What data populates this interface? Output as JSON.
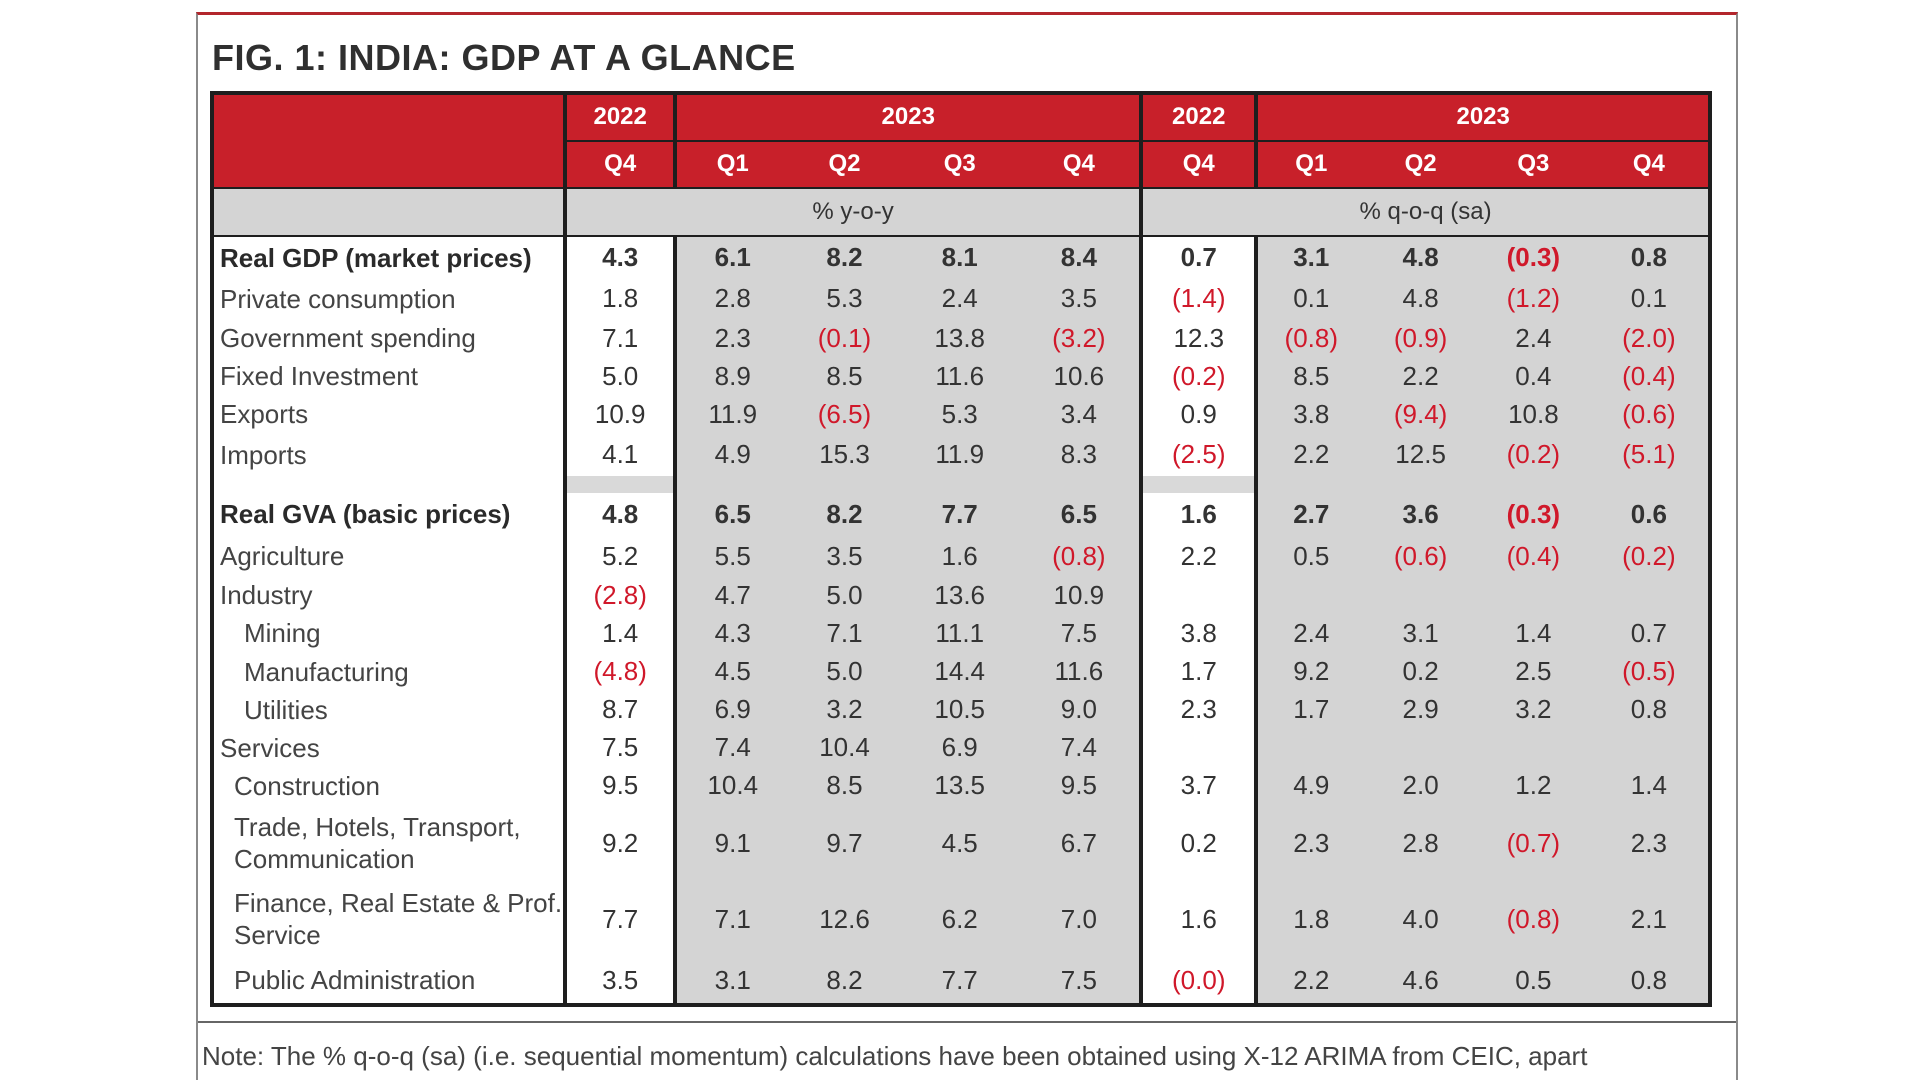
{
  "title": "FIG. 1: INDIA: GDP AT A GLANCE",
  "header": {
    "years": [
      "2022",
      "2023",
      "2022",
      "2023"
    ],
    "quarters": [
      "Q4",
      "Q1",
      "Q2",
      "Q3",
      "Q4",
      "Q4",
      "Q1",
      "Q2",
      "Q3",
      "Q4"
    ],
    "yoy_label": "% y-o-y",
    "qoq_label": "% q-o-q (sa)"
  },
  "rows_top": [
    {
      "label": "Real GDP (market prices)",
      "values": [
        "4.3",
        "6.1",
        "8.2",
        "8.1",
        "8.4",
        "0.7",
        "3.1",
        "4.8",
        "(0.3)",
        "0.8"
      ]
    },
    {
      "label": "Private consumption",
      "values": [
        "1.8",
        "2.8",
        "5.3",
        "2.4",
        "3.5",
        "(1.4)",
        "0.1",
        "4.8",
        "(1.2)",
        "0.1"
      ]
    },
    {
      "label": "Government spending",
      "values": [
        "7.1",
        "2.3",
        "(0.1)",
        "13.8",
        "(3.2)",
        "12.3",
        "(0.8)",
        "(0.9)",
        "2.4",
        "(2.0)"
      ]
    },
    {
      "label": "Fixed Investment",
      "values": [
        "5.0",
        "8.9",
        "8.5",
        "11.6",
        "10.6",
        "(0.2)",
        "8.5",
        "2.2",
        "0.4",
        "(0.4)"
      ]
    },
    {
      "label": "Exports",
      "values": [
        "10.9",
        "11.9",
        "(6.5)",
        "5.3",
        "3.4",
        "0.9",
        "3.8",
        "(9.4)",
        "10.8",
        "(0.6)"
      ]
    },
    {
      "label": "Imports",
      "values": [
        "4.1",
        "4.9",
        "15.3",
        "11.9",
        "8.3",
        "(2.5)",
        "2.2",
        "12.5",
        "(0.2)",
        "(5.1)"
      ]
    }
  ],
  "rows_bottom": [
    {
      "label": "Real GVA (basic prices)",
      "values": [
        "4.8",
        "6.5",
        "8.2",
        "7.7",
        "6.5",
        "1.6",
        "2.7",
        "3.6",
        "(0.3)",
        "0.6"
      ]
    },
    {
      "label": "Agriculture",
      "values": [
        "5.2",
        "5.5",
        "3.5",
        "1.6",
        "(0.8)",
        "2.2",
        "0.5",
        "(0.6)",
        "(0.4)",
        "(0.2)"
      ]
    },
    {
      "label": "Industry",
      "values": [
        "(2.8)",
        "4.7",
        "5.0",
        "13.6",
        "10.9",
        "",
        "",
        "",
        "",
        ""
      ]
    },
    {
      "label": "Mining",
      "values": [
        "1.4",
        "4.3",
        "7.1",
        "11.1",
        "7.5",
        "3.8",
        "2.4",
        "3.1",
        "1.4",
        "0.7"
      ]
    },
    {
      "label": "Manufacturing",
      "values": [
        "(4.8)",
        "4.5",
        "5.0",
        "14.4",
        "11.6",
        "1.7",
        "9.2",
        "0.2",
        "2.5",
        "(0.5)"
      ]
    },
    {
      "label": "Utilities",
      "values": [
        "8.7",
        "6.9",
        "3.2",
        "10.5",
        "9.0",
        "2.3",
        "1.7",
        "2.9",
        "3.2",
        "0.8"
      ]
    },
    {
      "label": "Services",
      "values": [
        "7.5",
        "7.4",
        "10.4",
        "6.9",
        "7.4",
        "",
        "",
        "",
        "",
        ""
      ]
    },
    {
      "label": "Construction",
      "values": [
        "9.5",
        "10.4",
        "8.5",
        "13.5",
        "9.5",
        "3.7",
        "4.9",
        "2.0",
        "1.2",
        "1.4"
      ]
    },
    {
      "label": "Trade, Hotels, Transport, Communication",
      "values": [
        "9.2",
        "9.1",
        "9.7",
        "4.5",
        "6.7",
        "0.2",
        "2.3",
        "2.8",
        "(0.7)",
        "2.3"
      ]
    },
    {
      "label": "Finance, Real Estate & Prof. Service",
      "values": [
        "7.7",
        "7.1",
        "12.6",
        "6.2",
        "7.0",
        "1.6",
        "1.8",
        "4.0",
        "(0.8)",
        "2.1"
      ]
    },
    {
      "label": "Public Administration",
      "values": [
        "3.5",
        "3.1",
        "8.2",
        "7.7",
        "7.5",
        "(0.0)",
        "2.2",
        "4.6",
        "0.5",
        "0.8"
      ]
    }
  ],
  "note": "Note: The % q-o-q (sa) (i.e. sequential momentum) calculations have been obtained using X-12 ARIMA from CEIC, apart",
  "colors": {
    "accent_red": "#c8202a",
    "negative": "#d0182a",
    "shade": "#d4d4d4"
  }
}
